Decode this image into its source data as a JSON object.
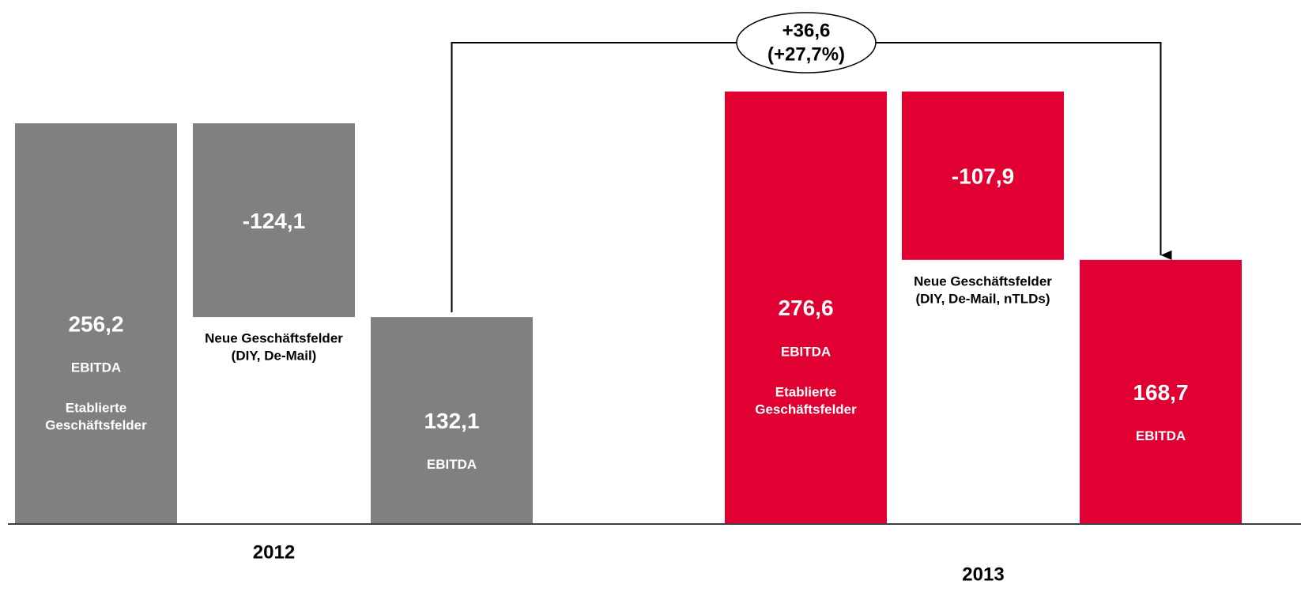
{
  "chart_data": {
    "type": "waterfall",
    "ylim": [
      0,
      300
    ],
    "groups": [
      {
        "name": "2012",
        "color": "#808080",
        "values": [
          256.2,
          -124.1,
          132.1
        ],
        "value_labels": [
          "256,2",
          "-124,1",
          "132,1"
        ],
        "labels": [
          [
            "EBITDA",
            "Etablierte",
            "Geschäftsfelder"
          ],
          [
            "Neue Geschäftsfelder",
            "(DIY, De-Mail)"
          ],
          [
            "EBITDA"
          ]
        ]
      },
      {
        "name": "2013",
        "color": "#e00031",
        "values": [
          276.6,
          -107.9,
          168.7
        ],
        "value_labels": [
          "276,6",
          "-107,9",
          "168,7"
        ],
        "labels": [
          [
            "EBITDA",
            "Etablierte",
            "Geschäftsfelder"
          ],
          [
            "Neue Geschäftsfelder",
            "(DIY, De-Mail, nTLDs)"
          ],
          [
            "EBITDA"
          ]
        ]
      }
    ],
    "annotation": [
      "+36,6",
      "(+27,7%)"
    ]
  }
}
